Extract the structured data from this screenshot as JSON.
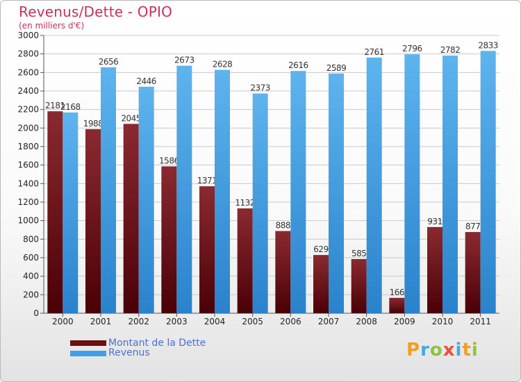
{
  "chart_data": {
    "type": "bar",
    "title": "Revenus/Dette - OPIO",
    "subtitle": "(en milliers d'€)",
    "categories": [
      "2000",
      "2001",
      "2002",
      "2003",
      "2004",
      "2005",
      "2006",
      "2007",
      "2008",
      "2009",
      "2010",
      "2011"
    ],
    "series": [
      {
        "name": "Montant de la Dette",
        "color": "#6b0f14",
        "values": [
          2181,
          1988,
          2045,
          1586,
          1371,
          1132,
          888,
          629,
          585,
          166,
          931,
          877
        ],
        "labels": [
          "2181",
          "1988",
          "2045",
          "1586",
          "1371",
          "1132",
          "888",
          "629",
          "585",
          "166",
          "931",
          "877"
        ]
      },
      {
        "name": "Revenus",
        "color": "#3f9ee6",
        "values": [
          2168,
          2656,
          2446,
          2673,
          2628,
          2373,
          2616,
          2589,
          2761,
          2796,
          2782,
          2833
        ],
        "labels": [
          "2168",
          "2656",
          "2446",
          "2673",
          "2628",
          "2373",
          "2616",
          "2589",
          "2761",
          "2796",
          "2782",
          "2833"
        ]
      }
    ],
    "ylim": [
      0,
      3000
    ],
    "yticks": [
      0,
      200,
      400,
      600,
      800,
      1000,
      1200,
      1400,
      1600,
      1800,
      2000,
      2200,
      2400,
      2600,
      2800,
      3000
    ],
    "grid": true,
    "legend": "bottom-left"
  }
}
